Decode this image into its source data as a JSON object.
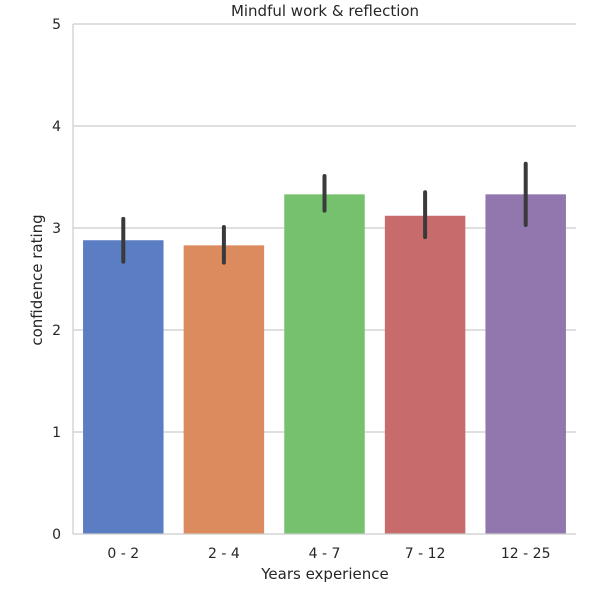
{
  "chart_data": {
    "type": "bar",
    "title": "Mindful work & reflection",
    "xlabel": "Years experience",
    "ylabel": "confidence rating",
    "categories": [
      "0 - 2",
      "2 - 4",
      "4 - 7",
      "7 - 12",
      "12 - 25"
    ],
    "values": [
      2.88,
      2.83,
      3.33,
      3.12,
      3.33
    ],
    "error_low": [
      2.67,
      2.66,
      3.17,
      2.91,
      3.03
    ],
    "error_high": [
      3.09,
      3.01,
      3.51,
      3.35,
      3.63
    ],
    "ylim": [
      0,
      5
    ],
    "yticks": [
      0,
      1,
      2,
      3,
      4,
      5
    ],
    "grid": "horizontal",
    "colors": [
      "#5a7dc3",
      "#db8b5d",
      "#75c16d",
      "#c76b6c",
      "#9276ae"
    ],
    "error_bar_color": "#3a3a3a",
    "grid_color": "#cccccc"
  }
}
